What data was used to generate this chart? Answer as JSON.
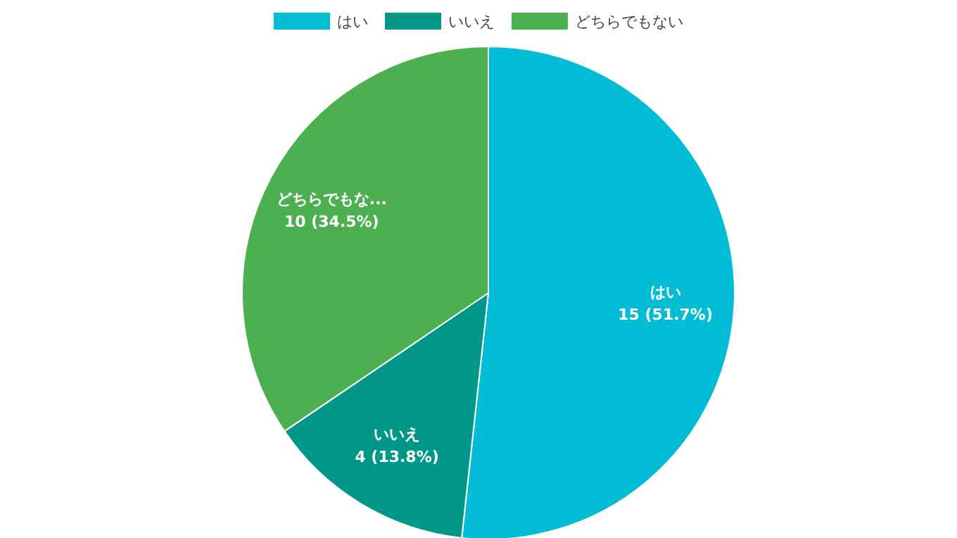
{
  "chart_data": {
    "type": "pie",
    "categories": [
      "はい",
      "いいえ",
      "どちらでもない"
    ],
    "values": [
      15,
      4,
      10
    ],
    "colors": [
      "#00bcd4",
      "#009688",
      "#4caf50"
    ],
    "value_labels": [
      "はい\n15 (51.7%)",
      "いいえ\n4 (13.8%)",
      "どちらでもな...\n10 (34.5%)"
    ],
    "legend": "top"
  }
}
